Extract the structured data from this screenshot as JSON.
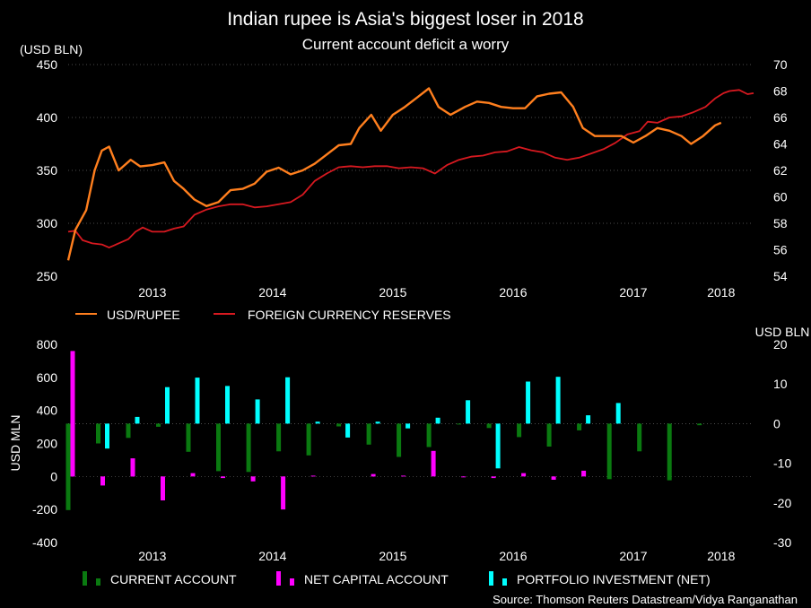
{
  "title": "Indian rupee is Asia's biggest loser in 2018",
  "subtitle": "Current account deficit a worry",
  "source": "Source: Thomson Reuters Datastream/Vidya Ranganathan",
  "colors": {
    "background": "#000000",
    "usd_rupee": "#ff7f1e",
    "reserves": "#d71920",
    "current_account": "#0a7a10",
    "net_capital_account": "#ff00ff",
    "portfolio_investment": "#00ffff",
    "grid": "#666666"
  },
  "chart_data": [
    {
      "type": "line",
      "left_axis_label": "(USD BLN)",
      "left_ylim": [
        250,
        450
      ],
      "left_ticks": [
        "450",
        "400",
        "350",
        "300",
        "250"
      ],
      "right_ylim": [
        54,
        70
      ],
      "right_ticks": [
        "70",
        "68",
        "66",
        "64",
        "62",
        "60",
        "58",
        "56",
        "54"
      ],
      "x_ticks": [
        "2013",
        "2014",
        "2015",
        "2016",
        "2017",
        "2018"
      ],
      "x_tick_positions": [
        2013.0,
        2014.0,
        2015.0,
        2016.0,
        2017.0,
        2017.73
      ],
      "xlim": [
        2012.3,
        2018.0
      ],
      "grid": true,
      "legend_position": "bottom-left",
      "series": [
        {
          "name": "USD/RUPEE",
          "axis": "right",
          "color_key": "usd_rupee",
          "points": [
            [
              2012.3,
              55.2
            ],
            [
              2012.36,
              57.5
            ],
            [
              2012.45,
              59.0
            ],
            [
              2012.52,
              62
            ],
            [
              2012.58,
              63.5
            ],
            [
              2012.64,
              63.8
            ],
            [
              2012.72,
              62.0
            ],
            [
              2012.82,
              62.8
            ],
            [
              2012.9,
              62.3
            ],
            [
              2013.0,
              62.4
            ],
            [
              2013.1,
              62.6
            ],
            [
              2013.18,
              61.2
            ],
            [
              2013.26,
              60.6
            ],
            [
              2013.35,
              59.8
            ],
            [
              2013.45,
              59.3
            ],
            [
              2013.55,
              59.6
            ],
            [
              2013.65,
              60.5
            ],
            [
              2013.75,
              60.6
            ],
            [
              2013.85,
              61.0
            ],
            [
              2013.95,
              61.9
            ],
            [
              2014.05,
              62.2
            ],
            [
              2014.15,
              61.7
            ],
            [
              2014.25,
              62.0
            ],
            [
              2014.35,
              62.5
            ],
            [
              2014.45,
              63.2
            ],
            [
              2014.55,
              63.9
            ],
            [
              2014.65,
              64.0
            ],
            [
              2014.72,
              65.2
            ],
            [
              2014.82,
              66.2
            ],
            [
              2014.9,
              65.0
            ],
            [
              2015.0,
              66.2
            ],
            [
              2015.1,
              66.8
            ],
            [
              2015.2,
              67.5
            ],
            [
              2015.3,
              68.2
            ],
            [
              2015.38,
              66.8
            ],
            [
              2015.48,
              66.2
            ],
            [
              2015.6,
              66.8
            ],
            [
              2015.7,
              67.2
            ],
            [
              2015.8,
              67.1
            ],
            [
              2015.9,
              66.8
            ],
            [
              2016.0,
              66.7
            ],
            [
              2016.1,
              66.7
            ],
            [
              2016.2,
              67.6
            ],
            [
              2016.3,
              67.8
            ],
            [
              2016.4,
              67.9
            ],
            [
              2016.5,
              66.8
            ],
            [
              2016.58,
              65.2
            ],
            [
              2016.68,
              64.6
            ],
            [
              2016.8,
              64.6
            ],
            [
              2016.9,
              64.6
            ],
            [
              2017.0,
              64.1
            ],
            [
              2017.1,
              64.6
            ],
            [
              2017.2,
              65.2
            ],
            [
              2017.3,
              65.0
            ],
            [
              2017.4,
              64.6
            ],
            [
              2017.48,
              64.0
            ],
            [
              2017.58,
              64.6
            ],
            [
              2017.68,
              65.4
            ],
            [
              2017.73,
              65.6
            ]
          ]
        },
        {
          "name": "FOREIGN CURRENCY RESERVES",
          "axis": "left",
          "color_key": "reserves",
          "points": [
            [
              2012.3,
              292
            ],
            [
              2012.36,
              293
            ],
            [
              2012.42,
              284
            ],
            [
              2012.5,
              281
            ],
            [
              2012.58,
              280
            ],
            [
              2012.64,
              277
            ],
            [
              2012.7,
              280
            ],
            [
              2012.8,
              285
            ],
            [
              2012.86,
              292
            ],
            [
              2012.92,
              296
            ],
            [
              2013.0,
              292
            ],
            [
              2013.1,
              292
            ],
            [
              2013.18,
              295
            ],
            [
              2013.26,
              297
            ],
            [
              2013.35,
              308
            ],
            [
              2013.45,
              313
            ],
            [
              2013.55,
              316
            ],
            [
              2013.65,
              318
            ],
            [
              2013.75,
              318
            ],
            [
              2013.85,
              315
            ],
            [
              2013.95,
              316
            ],
            [
              2014.05,
              318
            ],
            [
              2014.15,
              320
            ],
            [
              2014.25,
              327
            ],
            [
              2014.35,
              340
            ],
            [
              2014.45,
              347
            ],
            [
              2014.55,
              353
            ],
            [
              2014.65,
              354
            ],
            [
              2014.75,
              353
            ],
            [
              2014.85,
              354
            ],
            [
              2014.95,
              354
            ],
            [
              2015.05,
              352
            ],
            [
              2015.15,
              353
            ],
            [
              2015.25,
              352
            ],
            [
              2015.35,
              347
            ],
            [
              2015.45,
              355
            ],
            [
              2015.55,
              360
            ],
            [
              2015.65,
              363
            ],
            [
              2015.75,
              364
            ],
            [
              2015.85,
              367
            ],
            [
              2015.95,
              368
            ],
            [
              2016.05,
              372
            ],
            [
              2016.15,
              369
            ],
            [
              2016.25,
              367
            ],
            [
              2016.35,
              362
            ],
            [
              2016.45,
              360
            ],
            [
              2016.55,
              362
            ],
            [
              2016.65,
              366
            ],
            [
              2016.75,
              370
            ],
            [
              2016.85,
              376
            ],
            [
              2016.95,
              384
            ],
            [
              2017.05,
              387
            ],
            [
              2017.12,
              396
            ],
            [
              2017.2,
              395
            ],
            [
              2017.3,
              400
            ],
            [
              2017.4,
              401
            ],
            [
              2017.5,
              405
            ],
            [
              2017.6,
              410
            ],
            [
              2017.68,
              418
            ],
            [
              2017.75,
              423
            ],
            [
              2017.8,
              425
            ],
            [
              2017.88,
              426
            ],
            [
              2017.95,
              422
            ],
            [
              2018.0,
              423
            ]
          ]
        }
      ]
    },
    {
      "type": "bar",
      "left_axis_label": "USD MLN",
      "right_axis_label": "USD BLN",
      "left_ylim": [
        -400,
        800
      ],
      "left_ticks": [
        "800",
        "600",
        "400",
        "200",
        "0",
        "-200",
        "-400"
      ],
      "right_ylim": [
        -30,
        20
      ],
      "right_ticks": [
        "20",
        "10",
        "0",
        "-10",
        "-20",
        "-30"
      ],
      "x_ticks": [
        "2013",
        "2014",
        "2015",
        "2016",
        "2017",
        "2018"
      ],
      "x_tick_positions": [
        2013.0,
        2014.0,
        2015.0,
        2016.0,
        2017.0,
        2017.73
      ],
      "xlim": [
        2012.3,
        2018.0
      ],
      "grid": true,
      "legend_position": "bottom-left",
      "categories": [
        "2012Q2",
        "2012Q3",
        "2012Q4",
        "2013Q1",
        "2013Q2",
        "2013Q3",
        "2013Q4",
        "2014Q1",
        "2014Q2",
        "2014Q3",
        "2014Q4",
        "2015Q1",
        "2015Q2",
        "2015Q3",
        "2015Q4",
        "2016Q1",
        "2016Q2",
        "2016Q3",
        "2016Q4",
        "2017Q1",
        "2017Q2",
        "2017Q3"
      ],
      "x": [
        2012.3,
        2012.55,
        2012.8,
        2013.05,
        2013.3,
        2013.55,
        2013.8,
        2014.05,
        2014.3,
        2014.55,
        2014.8,
        2015.05,
        2015.3,
        2015.55,
        2015.8,
        2016.05,
        2016.3,
        2016.55,
        2016.8,
        2017.05,
        2017.3,
        2017.55
      ],
      "series": [
        {
          "name": "CURRENT ACCOUNT",
          "axis": "right",
          "color_key": "current_account",
          "values": [
            -21.8,
            -5,
            -3.6,
            -0.8,
            -7.1,
            -12,
            -12.2,
            -7,
            -8,
            -0.7,
            -5.3,
            -8.4,
            -5.9,
            -0.1,
            -1.1,
            -3.4,
            -5.8,
            -1.7,
            -14,
            -7,
            -14.3,
            -0.4
          ]
        },
        {
          "name": "NET CAPITAL ACCOUNT",
          "axis": "left",
          "color_key": "net_capital_account",
          "values": [
            760,
            -55,
            110,
            -145,
            20,
            -10,
            -30,
            -200,
            5,
            0,
            15,
            5,
            155,
            -5,
            -10,
            20,
            -20,
            35,
            0,
            0,
            0,
            0
          ]
        },
        {
          "name": "PORTFOLIO INVESTMENT (NET)",
          "axis": "right",
          "color_key": "portfolio_investment",
          "values": [
            0,
            -6.3,
            1.7,
            9.2,
            11.6,
            9.5,
            6.1,
            11.7,
            0.5,
            -3.5,
            0.5,
            -1.2,
            1.5,
            5.9,
            -11.3,
            10.6,
            11.8,
            2.1,
            5.2,
            0,
            0,
            0
          ]
        }
      ]
    }
  ]
}
